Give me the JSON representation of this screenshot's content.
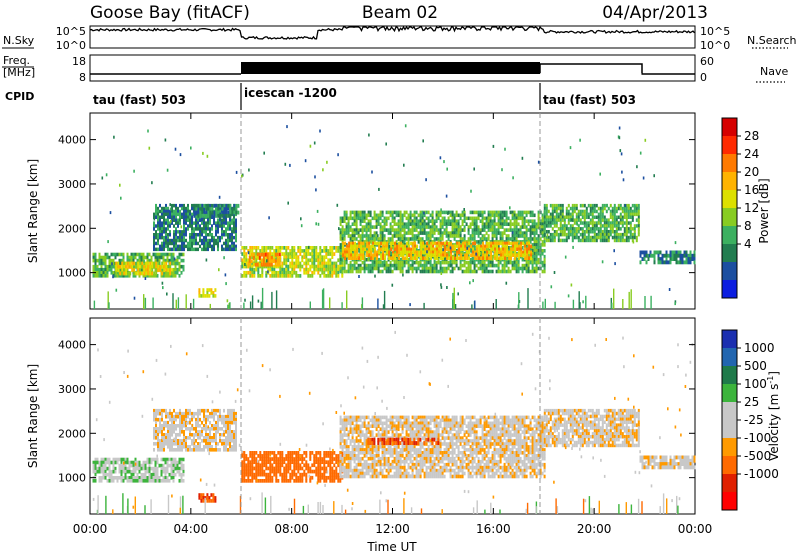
{
  "header": {
    "station": "Goose Bay (fitACF)",
    "beam": "Beam 02",
    "date": "04/Apr/2013"
  },
  "nsky": {
    "label": "N.Sky",
    "ticks": [
      "10^5",
      "10^0"
    ],
    "right_label": "N.Search",
    "right_ticks": [
      "10^5",
      "10^0"
    ]
  },
  "freq": {
    "label_line1": "Freq.",
    "label_line2": "[MHz]",
    "ticks": [
      "18",
      "8"
    ],
    "right_ticks": [
      "60",
      "0"
    ],
    "right_label": "Nave"
  },
  "cpid": {
    "label": "CPID",
    "segments": [
      {
        "name": "tau (fast) 503",
        "start_h": 0,
        "end_h": 6
      },
      {
        "name": "icescan -1200",
        "start_h": 6,
        "end_h": 18
      },
      {
        "name": "tau (fast) 503",
        "start_h": 18,
        "end_h": 24
      }
    ]
  },
  "colorbars": {
    "power": {
      "label": "Power [dB]",
      "ticks": [
        "28",
        "24",
        "20",
        "16",
        "12",
        "8",
        "4"
      ],
      "colors": [
        "#d60000",
        "#ff2a00",
        "#ff7a00",
        "#ffb300",
        "#dde000",
        "#88cc22",
        "#3cb060",
        "#227d50",
        "#1c4fa0",
        "#0c1ee0"
      ]
    },
    "velocity": {
      "label_main": "Velocity [m s",
      "label_sup": "-1",
      "label_end": "]",
      "ticks": [
        "1000",
        "500",
        "100",
        "25",
        "-25",
        "-100",
        "-500",
        "-1000"
      ],
      "colors": [
        "#1b2fb0",
        "#2266b0",
        "#1f7a4a",
        "#3cb43c",
        "#c8c8c8",
        "#c8c8c8",
        "#ff9a00",
        "#ff6a00",
        "#e02000",
        "#ff0000"
      ]
    }
  },
  "chart_data": [
    {
      "type": "heatmap",
      "title": "",
      "xlabel": "Time UT",
      "ylabel": "Slant Range [km]",
      "xlim": [
        0,
        24
      ],
      "ylim": [
        180,
        4600
      ],
      "x_ticks": [
        "00:00",
        "04:00",
        "08:00",
        "12:00",
        "16:00",
        "20:00",
        "00:00"
      ],
      "y_ticks": [
        1000,
        2000,
        3000,
        4000
      ],
      "colorbar": "Power [dB]",
      "regions": [
        {
          "x": [
            0.1,
            3.7
          ],
          "y": [
            900,
            1450
          ],
          "value": 12
        },
        {
          "x": [
            1.0,
            3.3
          ],
          "y": [
            950,
            1250
          ],
          "value": 18
        },
        {
          "x": [
            2.5,
            5.8
          ],
          "y": [
            1500,
            2550
          ],
          "value": 8
        },
        {
          "x": [
            4.1,
            5.9
          ],
          "y": [
            2250,
            2550
          ],
          "value": 8
        },
        {
          "x": [
            4.3,
            5.0
          ],
          "y": [
            450,
            650
          ],
          "value": 18
        },
        {
          "x": [
            6.0,
            10.0
          ],
          "y": [
            900,
            1600
          ],
          "value": 16
        },
        {
          "x": [
            6.3,
            7.5
          ],
          "y": [
            1150,
            1450
          ],
          "value": 22
        },
        {
          "x": [
            9.9,
            18.0
          ],
          "y": [
            1000,
            2400
          ],
          "value": 12
        },
        {
          "x": [
            10.0,
            17.5
          ],
          "y": [
            1300,
            1700
          ],
          "value": 20
        },
        {
          "x": [
            18.0,
            21.8
          ],
          "y": [
            1700,
            2550
          ],
          "value": 12
        },
        {
          "x": [
            21.8,
            24.0
          ],
          "y": [
            1200,
            1500
          ],
          "value": 8
        }
      ]
    },
    {
      "type": "heatmap",
      "title": "",
      "xlabel": "Time UT",
      "ylabel": "Slant Range [km]",
      "xlim": [
        0,
        24
      ],
      "ylim": [
        180,
        4600
      ],
      "x_ticks": [
        "00:00",
        "04:00",
        "08:00",
        "12:00",
        "16:00",
        "20:00",
        "00:00"
      ],
      "y_ticks": [
        1000,
        2000,
        3000,
        4000
      ],
      "colorbar": "Velocity [m s-1]",
      "regions": [
        {
          "x": [
            0.1,
            3.7
          ],
          "y": [
            900,
            1450
          ],
          "value": 80
        },
        {
          "x": [
            2.5,
            5.8
          ],
          "y": [
            1600,
            2550
          ],
          "value": 0
        },
        {
          "x": [
            4.3,
            5.0
          ],
          "y": [
            450,
            650
          ],
          "value": -300
        },
        {
          "x": [
            6.0,
            10.0
          ],
          "y": [
            900,
            1600
          ],
          "value": -200
        },
        {
          "x": [
            9.9,
            18.0
          ],
          "y": [
            1000,
            2400
          ],
          "value": 0
        },
        {
          "x": [
            11.0,
            13.8
          ],
          "y": [
            1750,
            1900
          ],
          "value": -300
        },
        {
          "x": [
            18.0,
            21.8
          ],
          "y": [
            1700,
            2550
          ],
          "value": 0
        },
        {
          "x": [
            21.8,
            24.0
          ],
          "y": [
            1200,
            1500
          ],
          "value": 0
        }
      ]
    }
  ]
}
